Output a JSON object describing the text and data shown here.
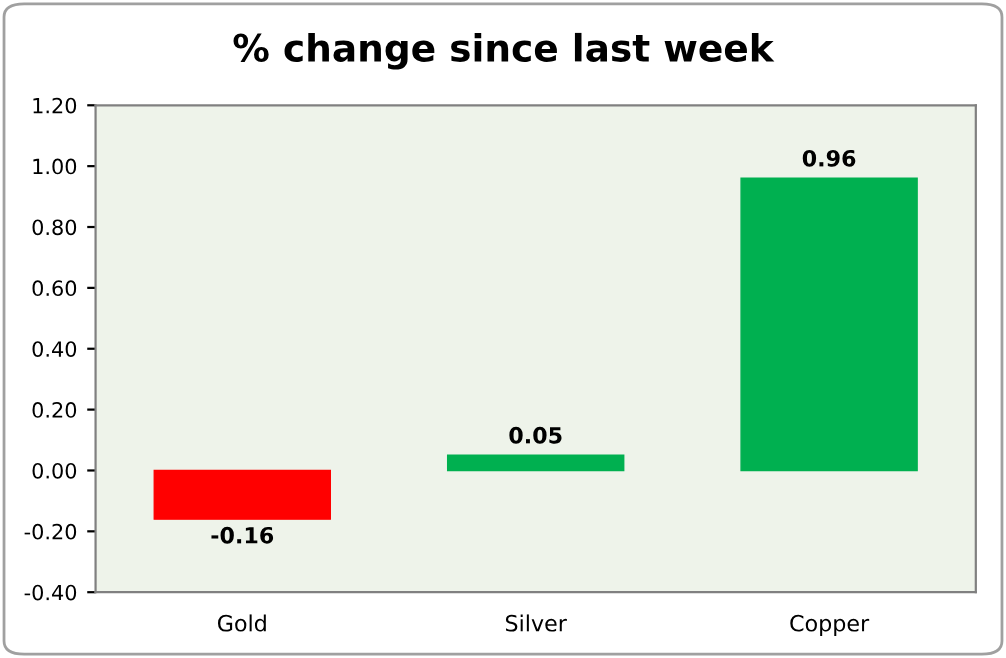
{
  "chart_data": {
    "type": "bar",
    "title": "% change since last week",
    "categories": [
      "Gold",
      "Silver",
      "Copper"
    ],
    "values": [
      -0.16,
      0.05,
      0.96
    ],
    "colors": [
      "#ff0000",
      "#00b050",
      "#00b050"
    ],
    "ylim": [
      -0.4,
      1.2
    ],
    "yticks": [
      {
        "value": -0.4,
        "label": "-0.40"
      },
      {
        "value": -0.2,
        "label": "-0.20"
      },
      {
        "value": 0,
        "label": "0.00"
      },
      {
        "value": 0.2,
        "label": "0.20"
      },
      {
        "value": 0.4,
        "label": "0.40"
      },
      {
        "value": 0.6,
        "label": "0.60"
      },
      {
        "value": 0.8,
        "label": "0.80"
      },
      {
        "value": 1.0,
        "label": "1.00"
      },
      {
        "value": 1.2,
        "label": "1.20"
      }
    ],
    "data_labels": true,
    "grid": false,
    "legend": false
  }
}
